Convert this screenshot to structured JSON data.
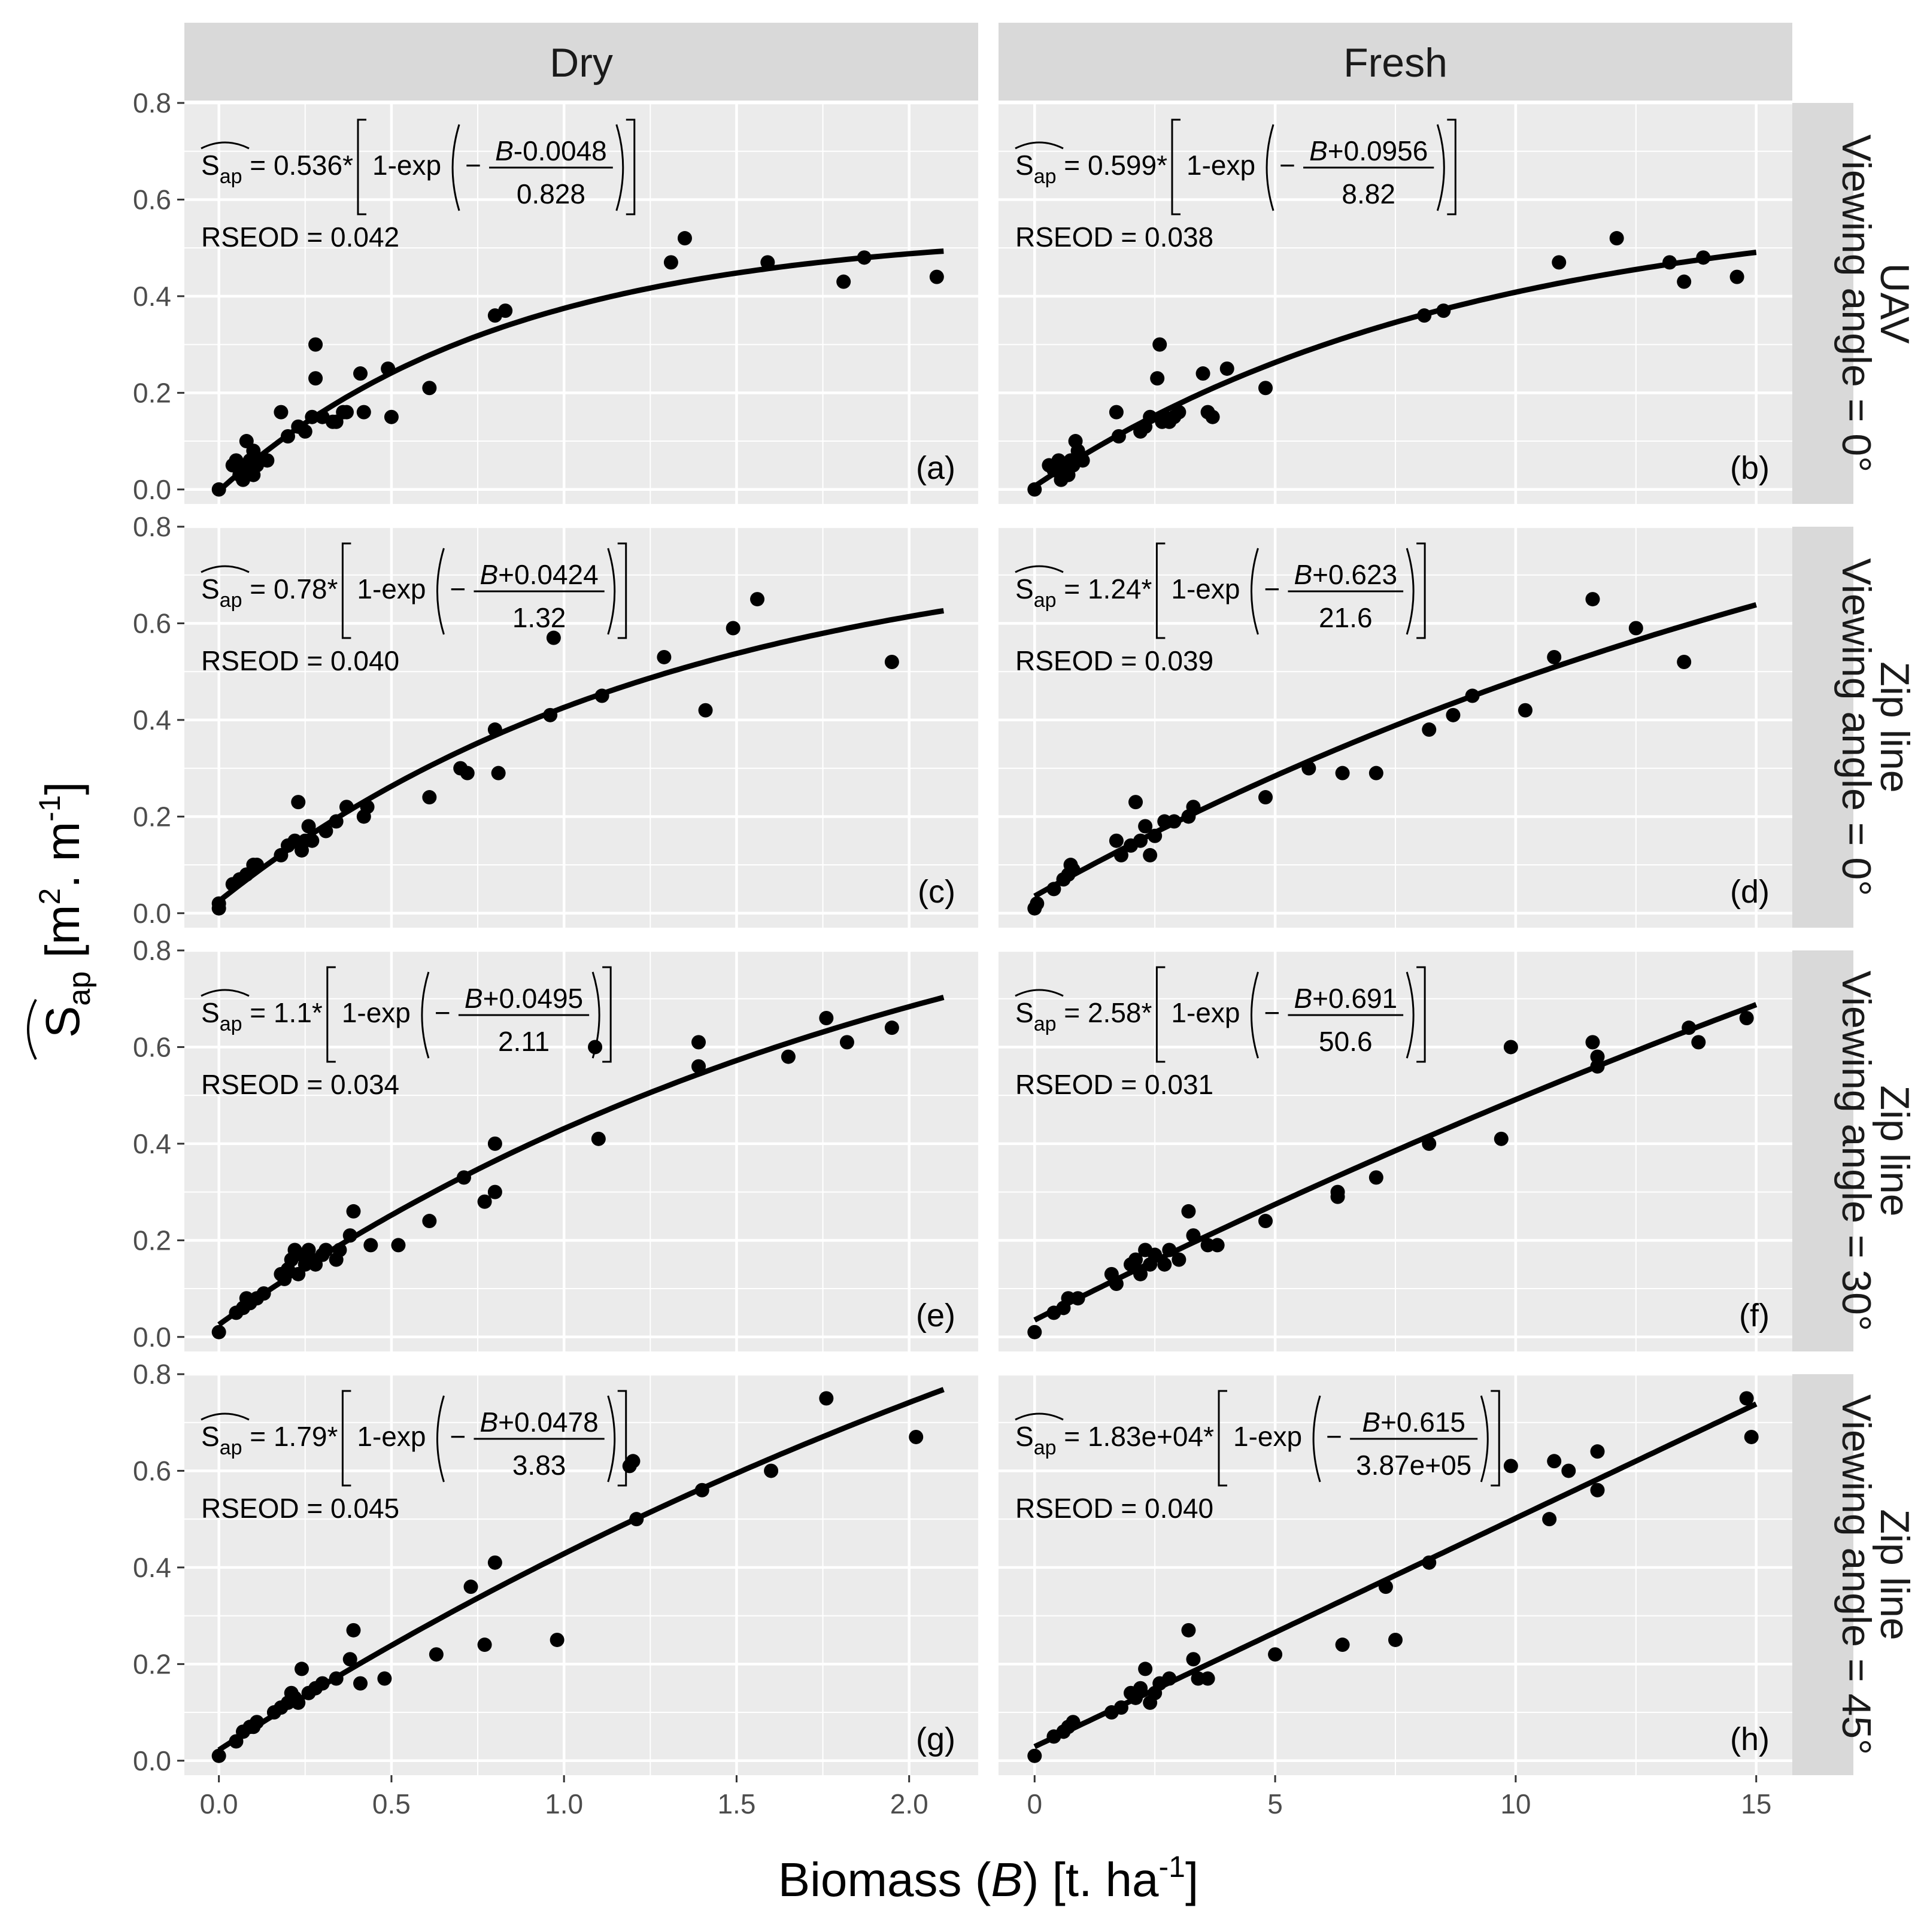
{
  "colors": {
    "panel_bg": "#ebebeb",
    "grid_major": "#ffffff",
    "strip_bg": "#d9d9d9",
    "points": "#000000",
    "curve": "#000000",
    "tick_text": "#4d4d4d"
  },
  "axis_titles": {
    "x_main": "Biomass (",
    "x_var": "B",
    "x_tail": ") [t. ha",
    "x_exp": "-1",
    "x_close": "]",
    "y_symbol": "S",
    "y_sub": "ap",
    "y_open": " [m",
    "y_exp1": "2",
    "y_mid": ". m",
    "y_exp2": "-1",
    "y_close": "]"
  },
  "col_strips": [
    "Dry",
    "Fresh"
  ],
  "row_strips": [
    {
      "line1": "UAV",
      "line2": "Viewing angle = 0°"
    },
    {
      "line1": "Zip line",
      "line2": "Viewing angle = 0°"
    },
    {
      "line1": "Zip line",
      "line2": "Viewing angle = 30°"
    },
    {
      "line1": "Zip line",
      "line2": "Viewing angle = 45°"
    }
  ],
  "y_ticks": [
    "0.0",
    "0.2",
    "0.4",
    "0.6",
    "0.8"
  ],
  "x_ticks_dry": [
    "0.0",
    "0.5",
    "1.0",
    "1.5",
    "2.0"
  ],
  "x_ticks_fresh": [
    "0",
    "5",
    "10",
    "15"
  ],
  "formula_parts": {
    "lhs_S": "S",
    "lhs_sub": "ap",
    "eq": " = ",
    "star": "*",
    "one_minus_exp": "1-exp",
    "minus": "−",
    "B": "B",
    "rseod_prefix": "RSEOD = "
  },
  "chart_data": [
    {
      "type": "scatter",
      "panel": "a",
      "col": "Dry",
      "row": "UAV, Viewing angle = 0°",
      "xlim": [
        -0.1,
        2.2
      ],
      "ylim": [
        -0.03,
        0.8
      ],
      "a_text": "0.536",
      "off_text": "-0.0048",
      "scale_text": "0.828",
      "rseod": "0.042",
      "a": 0.536,
      "off": -0.0048,
      "scale": 0.828,
      "curve_xmax": 2.1,
      "x": [
        0.0,
        0.04,
        0.05,
        0.06,
        0.06,
        0.07,
        0.08,
        0.08,
        0.09,
        0.09,
        0.1,
        0.1,
        0.11,
        0.12,
        0.14,
        0.18,
        0.2,
        0.23,
        0.25,
        0.27,
        0.28,
        0.28,
        0.3,
        0.33,
        0.34,
        0.36,
        0.37,
        0.41,
        0.42,
        0.49,
        0.5,
        0.61,
        0.8,
        0.83,
        1.31,
        1.35,
        1.59,
        1.81,
        1.87,
        2.08
      ],
      "y": [
        0.0,
        0.05,
        0.06,
        0.04,
        0.03,
        0.02,
        0.05,
        0.1,
        0.04,
        0.06,
        0.03,
        0.08,
        0.05,
        0.06,
        0.06,
        0.16,
        0.11,
        0.13,
        0.12,
        0.15,
        0.23,
        0.3,
        0.15,
        0.14,
        0.14,
        0.16,
        0.16,
        0.24,
        0.16,
        0.25,
        0.15,
        0.21,
        0.36,
        0.37,
        0.47,
        0.52,
        0.47,
        0.43,
        0.48,
        0.44
      ]
    },
    {
      "type": "scatter",
      "panel": "b",
      "col": "Fresh",
      "row": "UAV, Viewing angle = 0°",
      "xlim": [
        -0.75,
        15.75
      ],
      "ylim": [
        -0.03,
        0.8
      ],
      "a_text": "0.599",
      "off_text": "+0.0956",
      "scale_text": "8.82",
      "rseod": "0.038",
      "a": 0.599,
      "off": 0.0956,
      "scale": 8.82,
      "curve_xmax": 15.0,
      "x": [
        0.0,
        0.3,
        0.4,
        0.5,
        0.55,
        0.6,
        0.65,
        0.7,
        0.75,
        0.8,
        0.85,
        0.9,
        1.0,
        1.7,
        1.75,
        2.2,
        2.3,
        2.4,
        2.55,
        2.6,
        2.65,
        2.7,
        2.8,
        2.9,
        3.0,
        3.5,
        3.6,
        3.7,
        4.0,
        4.8,
        8.1,
        8.5,
        10.9,
        12.1,
        13.2,
        13.5,
        13.9,
        14.6
      ],
      "y": [
        0.0,
        0.05,
        0.04,
        0.06,
        0.02,
        0.03,
        0.05,
        0.03,
        0.06,
        0.05,
        0.1,
        0.08,
        0.06,
        0.16,
        0.11,
        0.12,
        0.13,
        0.15,
        0.23,
        0.3,
        0.14,
        0.15,
        0.14,
        0.15,
        0.16,
        0.24,
        0.16,
        0.15,
        0.25,
        0.21,
        0.36,
        0.37,
        0.47,
        0.52,
        0.47,
        0.43,
        0.48,
        0.44
      ]
    },
    {
      "type": "scatter",
      "panel": "c",
      "col": "Dry",
      "row": "Zip line, Viewing angle = 0°",
      "xlim": [
        -0.1,
        2.2
      ],
      "ylim": [
        -0.03,
        0.8
      ],
      "a_text": "0.78",
      "off_text": "+0.0424",
      "scale_text": "1.32",
      "rseod": "0.040",
      "a": 0.78,
      "off": 0.0424,
      "scale": 1.32,
      "curve_xmax": 2.1,
      "x": [
        0.0,
        0.0,
        0.04,
        0.06,
        0.08,
        0.1,
        0.11,
        0.18,
        0.2,
        0.22,
        0.23,
        0.24,
        0.25,
        0.26,
        0.27,
        0.31,
        0.34,
        0.37,
        0.42,
        0.43,
        0.61,
        0.7,
        0.72,
        0.8,
        0.81,
        0.96,
        0.97,
        1.11,
        1.29,
        1.41,
        1.49,
        1.56,
        1.95
      ],
      "y": [
        0.01,
        0.02,
        0.06,
        0.07,
        0.08,
        0.1,
        0.1,
        0.12,
        0.14,
        0.15,
        0.23,
        0.13,
        0.15,
        0.18,
        0.15,
        0.17,
        0.19,
        0.22,
        0.2,
        0.22,
        0.24,
        0.3,
        0.29,
        0.38,
        0.29,
        0.41,
        0.57,
        0.45,
        0.53,
        0.42,
        0.59,
        0.65,
        0.52
      ]
    },
    {
      "type": "scatter",
      "panel": "d",
      "col": "Fresh",
      "row": "Zip line, Viewing angle = 0°",
      "xlim": [
        -0.75,
        15.75
      ],
      "ylim": [
        -0.03,
        0.8
      ],
      "a_text": "1.24",
      "off_text": "+0.623",
      "scale_text": "21.6",
      "rseod": "0.039",
      "a": 1.24,
      "off": 0.623,
      "scale": 21.6,
      "curve_xmax": 15.0,
      "x": [
        0.0,
        0.05,
        0.4,
        0.6,
        0.7,
        0.75,
        0.8,
        1.7,
        1.8,
        2.0,
        2.1,
        2.2,
        2.3,
        2.4,
        2.5,
        2.7,
        2.9,
        3.2,
        3.3,
        4.8,
        5.7,
        6.4,
        7.1,
        8.2,
        8.7,
        9.1,
        10.2,
        10.8,
        11.6,
        12.5,
        13.5
      ],
      "y": [
        0.01,
        0.02,
        0.05,
        0.07,
        0.08,
        0.1,
        0.09,
        0.15,
        0.12,
        0.14,
        0.23,
        0.15,
        0.18,
        0.12,
        0.16,
        0.19,
        0.19,
        0.2,
        0.22,
        0.24,
        0.3,
        0.29,
        0.29,
        0.38,
        0.41,
        0.45,
        0.42,
        0.53,
        0.65,
        0.59,
        0.52
      ]
    },
    {
      "type": "scatter",
      "panel": "e",
      "col": "Dry",
      "row": "Zip line, Viewing angle = 30°",
      "xlim": [
        -0.1,
        2.2
      ],
      "ylim": [
        -0.03,
        0.8
      ],
      "a_text": "1.1",
      "off_text": "+0.0495",
      "scale_text": "2.11",
      "rseod": "0.034",
      "a": 1.1,
      "off": 0.0495,
      "scale": 2.11,
      "curve_xmax": 2.1,
      "x": [
        0.0,
        0.05,
        0.07,
        0.08,
        0.09,
        0.11,
        0.13,
        0.18,
        0.19,
        0.2,
        0.21,
        0.22,
        0.23,
        0.24,
        0.25,
        0.26,
        0.27,
        0.28,
        0.3,
        0.31,
        0.34,
        0.35,
        0.38,
        0.39,
        0.44,
        0.52,
        0.61,
        0.71,
        0.77,
        0.8,
        0.8,
        1.09,
        1.1,
        1.39,
        1.39,
        1.65,
        1.76,
        1.82,
        1.95
      ],
      "y": [
        0.01,
        0.05,
        0.06,
        0.08,
        0.07,
        0.08,
        0.09,
        0.13,
        0.12,
        0.14,
        0.16,
        0.18,
        0.13,
        0.17,
        0.15,
        0.18,
        0.16,
        0.15,
        0.17,
        0.18,
        0.16,
        0.18,
        0.21,
        0.26,
        0.19,
        0.19,
        0.24,
        0.33,
        0.28,
        0.3,
        0.4,
        0.6,
        0.41,
        0.56,
        0.61,
        0.58,
        0.66,
        0.61,
        0.64
      ]
    },
    {
      "type": "scatter",
      "panel": "f",
      "col": "Fresh",
      "row": "Zip line, Viewing angle = 30°",
      "xlim": [
        -0.75,
        15.75
      ],
      "ylim": [
        -0.03,
        0.8
      ],
      "a_text": "2.58",
      "off_text": "+0.691",
      "scale_text": "50.6",
      "rseod": "0.031",
      "a": 2.58,
      "off": 0.691,
      "scale": 50.6,
      "curve_xmax": 15.0,
      "x": [
        0.0,
        0.4,
        0.6,
        0.7,
        0.9,
        1.6,
        1.7,
        2.0,
        2.1,
        2.2,
        2.3,
        2.4,
        2.5,
        2.7,
        2.8,
        3.0,
        3.2,
        3.3,
        3.6,
        3.8,
        4.8,
        6.3,
        6.3,
        7.1,
        8.2,
        9.7,
        9.9,
        11.6,
        11.7,
        11.7,
        13.6,
        13.8,
        14.8
      ],
      "y": [
        0.01,
        0.05,
        0.06,
        0.08,
        0.08,
        0.13,
        0.11,
        0.15,
        0.16,
        0.13,
        0.18,
        0.15,
        0.17,
        0.15,
        0.18,
        0.16,
        0.26,
        0.21,
        0.19,
        0.19,
        0.24,
        0.29,
        0.3,
        0.33,
        0.4,
        0.41,
        0.6,
        0.61,
        0.56,
        0.58,
        0.64,
        0.61,
        0.66
      ]
    },
    {
      "type": "scatter",
      "panel": "g",
      "col": "Dry",
      "row": "Zip line, Viewing angle = 45°",
      "xlim": [
        -0.1,
        2.2
      ],
      "ylim": [
        -0.03,
        0.8
      ],
      "a_text": "1.79",
      "off_text": "+0.0478",
      "scale_text": "3.83",
      "rseod": "0.045",
      "a": 1.79,
      "off": 0.0478,
      "scale": 3.83,
      "curve_xmax": 2.1,
      "x": [
        0.0,
        0.05,
        0.07,
        0.09,
        0.1,
        0.11,
        0.16,
        0.18,
        0.2,
        0.21,
        0.22,
        0.23,
        0.24,
        0.26,
        0.28,
        0.3,
        0.34,
        0.38,
        0.39,
        0.41,
        0.48,
        0.63,
        0.73,
        0.77,
        0.8,
        0.98,
        1.19,
        1.2,
        1.21,
        1.4,
        1.6,
        1.76,
        2.02
      ],
      "y": [
        0.01,
        0.04,
        0.06,
        0.07,
        0.07,
        0.08,
        0.1,
        0.11,
        0.12,
        0.14,
        0.13,
        0.12,
        0.19,
        0.14,
        0.15,
        0.16,
        0.17,
        0.21,
        0.27,
        0.16,
        0.17,
        0.22,
        0.36,
        0.24,
        0.41,
        0.25,
        0.61,
        0.62,
        0.5,
        0.56,
        0.6,
        0.75,
        0.67
      ]
    },
    {
      "type": "scatter",
      "panel": "h",
      "col": "Fresh",
      "row": "Zip line, Viewing angle = 45°",
      "xlim": [
        -0.75,
        15.75
      ],
      "ylim": [
        -0.03,
        0.8
      ],
      "a_text": "1.83e+04",
      "off_text": "+0.615",
      "scale_text": "3.87e+05",
      "rseod": "0.040",
      "a": 18300,
      "off": 0.615,
      "scale": 387000,
      "curve_xmax": 15.0,
      "x": [
        0.0,
        0.4,
        0.6,
        0.7,
        0.8,
        1.6,
        1.8,
        2.0,
        2.1,
        2.2,
        2.3,
        2.4,
        2.5,
        2.6,
        2.8,
        3.2,
        3.3,
        3.4,
        3.6,
        5.0,
        6.4,
        7.3,
        7.5,
        8.2,
        9.9,
        10.7,
        10.8,
        11.1,
        11.7,
        11.7,
        14.8,
        14.9
      ],
      "y": [
        0.01,
        0.05,
        0.06,
        0.07,
        0.08,
        0.1,
        0.11,
        0.14,
        0.13,
        0.15,
        0.19,
        0.12,
        0.14,
        0.16,
        0.17,
        0.27,
        0.21,
        0.17,
        0.17,
        0.22,
        0.24,
        0.36,
        0.25,
        0.41,
        0.61,
        0.5,
        0.62,
        0.6,
        0.56,
        0.64,
        0.75,
        0.67
      ]
    }
  ]
}
